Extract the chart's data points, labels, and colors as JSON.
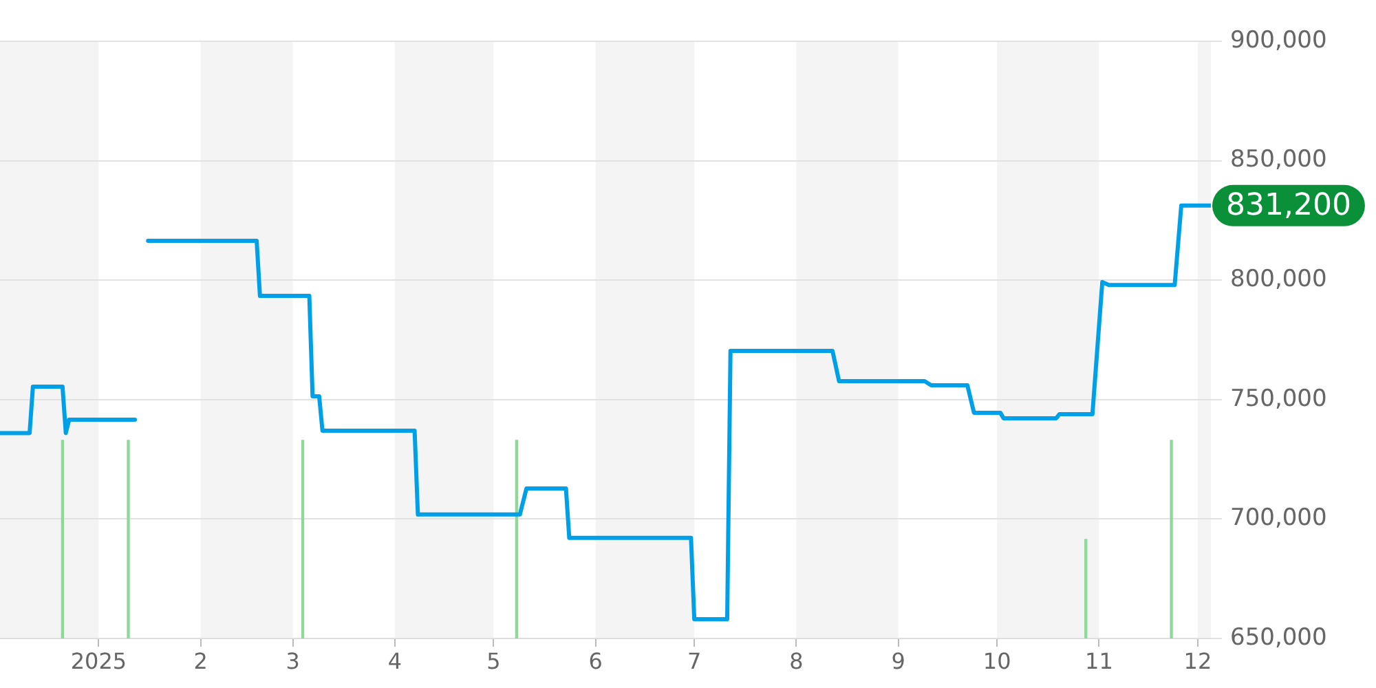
{
  "chart_data": {
    "type": "line",
    "xlim": [
      "2024-12-02",
      "2025-12-05"
    ],
    "xticks": [
      {
        "value": "2025-01-01",
        "label": "2025"
      },
      {
        "value": "2025-02-01",
        "label": "2"
      },
      {
        "value": "2025-03-01",
        "label": "3"
      },
      {
        "value": "2025-04-01",
        "label": "4"
      },
      {
        "value": "2025-05-01",
        "label": "5"
      },
      {
        "value": "2025-06-01",
        "label": "6"
      },
      {
        "value": "2025-07-01",
        "label": "7"
      },
      {
        "value": "2025-08-01",
        "label": "8"
      },
      {
        "value": "2025-09-01",
        "label": "9"
      },
      {
        "value": "2025-10-01",
        "label": "10"
      },
      {
        "value": "2025-11-01",
        "label": "11"
      },
      {
        "value": "2025-12-01",
        "label": "12"
      }
    ],
    "ylim": [
      650000,
      900000
    ],
    "yticks": [
      {
        "value": 650000,
        "label": "650,000"
      },
      {
        "value": 700000,
        "label": "700,000"
      },
      {
        "value": 750000,
        "label": "750,000"
      },
      {
        "value": 800000,
        "label": "800,000"
      },
      {
        "value": 850000,
        "label": "850,000"
      },
      {
        "value": 900000,
        "label": "900,000"
      }
    ],
    "grid": "y",
    "legend": false,
    "marker": "none",
    "line_style": "solid",
    "bands": [
      {
        "axis": "x",
        "from": "2024-12-02",
        "to": "2025-01-01",
        "color": "#f4f4f4"
      },
      {
        "axis": "x",
        "from": "2025-02-01",
        "to": "2025-03-01",
        "color": "#f4f4f4"
      },
      {
        "axis": "x",
        "from": "2025-04-01",
        "to": "2025-05-01",
        "color": "#f4f4f4"
      },
      {
        "axis": "x",
        "from": "2025-06-01",
        "to": "2025-07-01",
        "color": "#f4f4f4"
      },
      {
        "axis": "x",
        "from": "2025-08-01",
        "to": "2025-09-01",
        "color": "#f4f4f4"
      },
      {
        "axis": "x",
        "from": "2025-10-01",
        "to": "2025-11-01",
        "color": "#f4f4f4"
      },
      {
        "axis": "x",
        "from": "2025-12-01",
        "to": "2025-12-05",
        "color": "#f4f4f4"
      }
    ],
    "series": [
      {
        "type": "bar",
        "color": "#8fd898",
        "x": [
          "2024-12-21",
          "2025-01-10",
          "2025-03-04",
          "2025-05-08",
          "2025-10-28",
          "2025-11-23"
        ],
        "values": [
          733000,
          733000,
          733000,
          733000,
          691500,
          733000
        ]
      },
      {
        "color": "#00a0e9",
        "x": [
          "2024-12-02",
          "2024-12-11",
          "2024-12-12",
          "2024-12-21",
          "2024-12-22",
          "2024-12-23",
          "2025-01-12",
          "2025-01-14",
          "2025-01-16",
          "2025-02-18",
          "2025-02-19",
          "2025-03-06",
          "2025-03-07",
          "2025-03-09",
          "2025-03-10",
          "2025-04-07",
          "2025-04-08",
          "2025-05-09",
          "2025-05-11",
          "2025-05-23",
          "2025-05-24",
          "2025-06-30",
          "2025-07-01",
          "2025-07-11",
          "2025-07-12",
          "2025-08-12",
          "2025-08-14",
          "2025-09-09",
          "2025-09-11",
          "2025-09-22",
          "2025-09-24",
          "2025-10-02",
          "2025-10-03",
          "2025-10-19",
          "2025-10-20",
          "2025-10-30",
          "2025-11-02",
          "2025-11-04",
          "2025-11-24",
          "2025-11-26",
          "2025-12-05"
        ],
        "values": [
          736000,
          736000,
          755400,
          755400,
          736000,
          741600,
          741600,
          null,
          816500,
          816500,
          793400,
          793400,
          751400,
          751400,
          737000,
          737000,
          701900,
          701900,
          712800,
          712800,
          692100,
          692100,
          658100,
          658100,
          770400,
          770400,
          757700,
          757700,
          756000,
          756000,
          744500,
          744500,
          742200,
          742200,
          743900,
          743900,
          799200,
          798000,
          798000,
          831200,
          831200
        ]
      }
    ],
    "annotations": [
      {
        "text": "831,200",
        "x": "2025-12-05",
        "y": 831200
      }
    ]
  }
}
